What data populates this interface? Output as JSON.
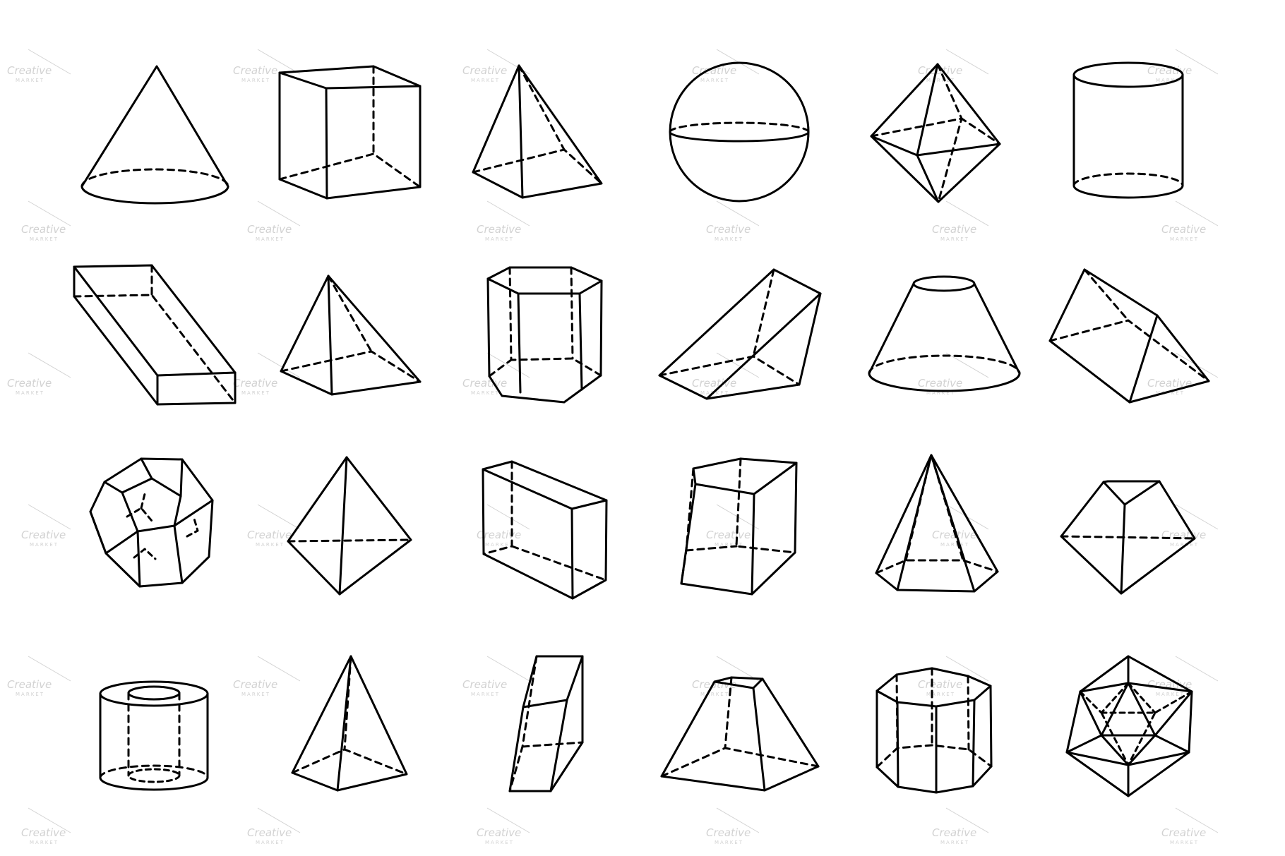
{
  "sheet": {
    "background": "#ffffff",
    "stroke_color": "#000000",
    "watermark_color": "#d2d2d2",
    "watermark_text": "Creative",
    "watermark_subtext": "MARKET"
  },
  "shapes": [
    {
      "id": "cone"
    },
    {
      "id": "cube"
    },
    {
      "id": "square-pyramid"
    },
    {
      "id": "sphere"
    },
    {
      "id": "octahedron"
    },
    {
      "id": "cylinder"
    },
    {
      "id": "oblique-rectangular-prism"
    },
    {
      "id": "triangular-prism-upright"
    },
    {
      "id": "hexagonal-prism"
    },
    {
      "id": "right-triangular-prism-wedge"
    },
    {
      "id": "frustum-cone"
    },
    {
      "id": "triangular-prism-lying"
    },
    {
      "id": "dodecahedron"
    },
    {
      "id": "tetrahedron"
    },
    {
      "id": "rectangular-box"
    },
    {
      "id": "pentagonal-prism"
    },
    {
      "id": "hexagonal-pyramid"
    },
    {
      "id": "truncated-solid"
    },
    {
      "id": "hollow-cylinder"
    },
    {
      "id": "tall-square-pyramid"
    },
    {
      "id": "oblique-thin-prism"
    },
    {
      "id": "frustum-pyramid"
    },
    {
      "id": "octagonal-prism"
    },
    {
      "id": "icosahedron"
    }
  ]
}
